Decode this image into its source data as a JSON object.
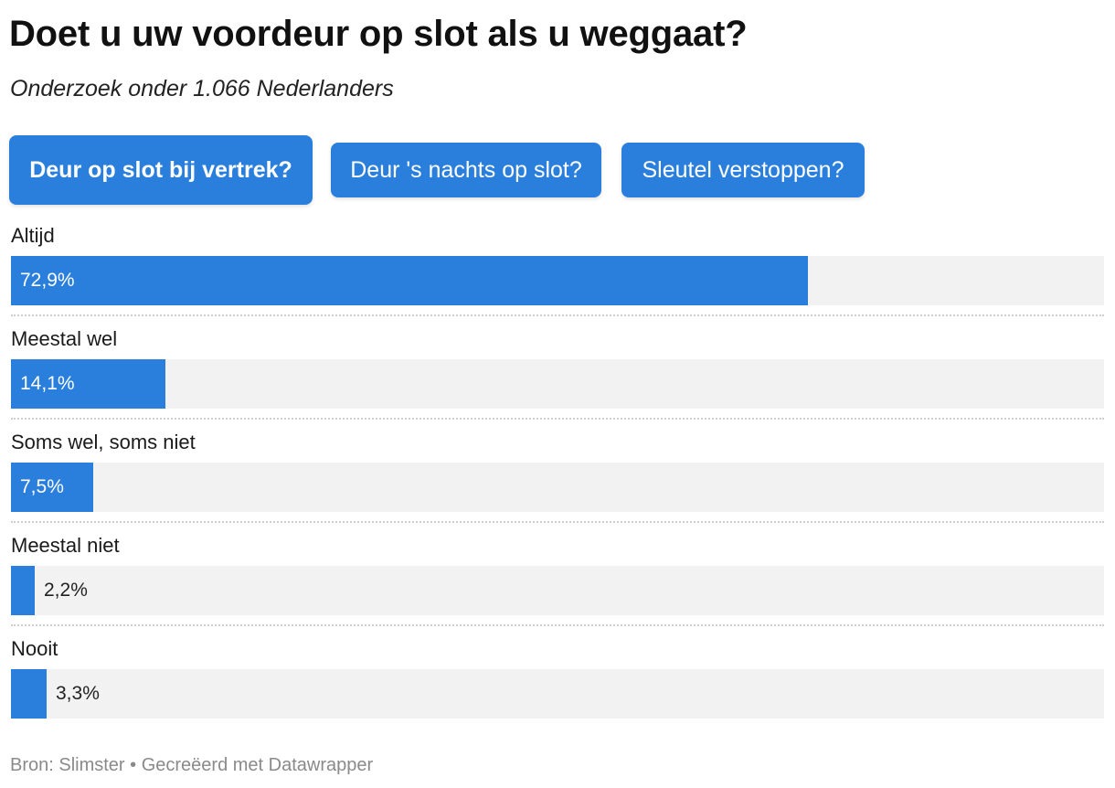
{
  "title": "Doet u uw voordeur op slot als u weggaat?",
  "subtitle": "Onderzoek onder 1.066 Nederlanders",
  "buttons": [
    {
      "label": "Deur op slot bij vertrek?",
      "active": true
    },
    {
      "label": "Deur 's nachts op slot?",
      "active": false
    },
    {
      "label": "Sleutel verstoppen?",
      "active": false
    }
  ],
  "colors": {
    "accent": "#2a7fdd",
    "track": "#f2f2f2"
  },
  "chart_data": {
    "type": "bar",
    "categories": [
      "Altijd",
      "Meestal wel",
      "Soms wel, soms niet",
      "Meestal niet",
      "Nooit"
    ],
    "values": [
      72.9,
      14.1,
      7.5,
      2.2,
      3.3
    ],
    "value_labels": [
      "72,9%",
      "14,1%",
      "7,5%",
      "2,2%",
      "3,3%"
    ],
    "xlim": [
      0,
      100
    ]
  },
  "footer": {
    "source": "Bron: Slimster • Gecreëerd met Datawrapper"
  }
}
